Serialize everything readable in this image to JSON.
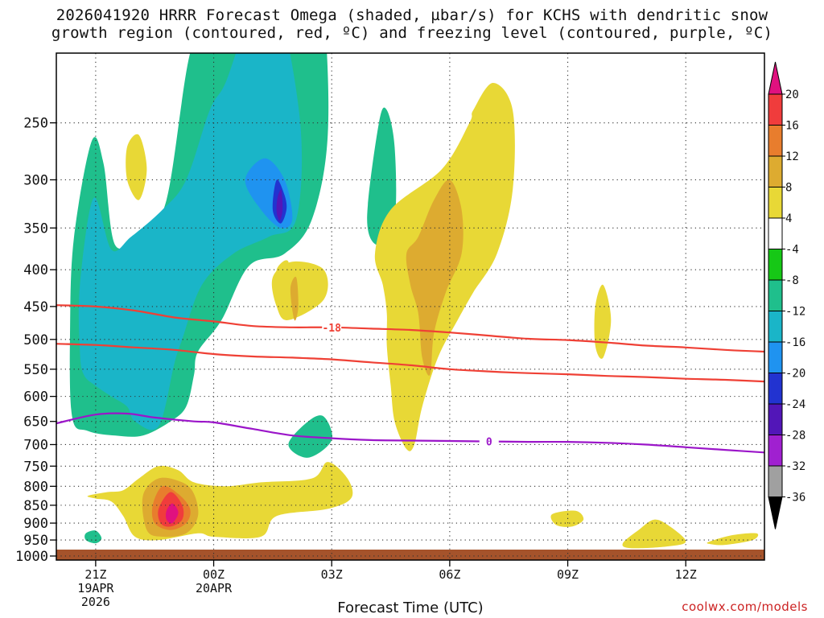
{
  "chart_data": {
    "type": "time-height cross section (filled contour)",
    "title_line1": "2026041920 HRRR Forecast Omega (shaded, µbar/s) for KCHS with dendritic snow",
    "title_line2": "growth region (contoured, red, ºC) and freezing level (contoured, purple, ºC)",
    "xlabel": "Forecast Time (UTC)",
    "credit": "coolwx.com/models",
    "y_axis": {
      "units": "hPa",
      "range": [
        1013,
        200
      ],
      "ticks": [
        250,
        300,
        350,
        400,
        450,
        500,
        550,
        600,
        650,
        700,
        750,
        800,
        850,
        900,
        950,
        1000
      ],
      "tick_labels": [
        "250",
        "300",
        "350",
        "400",
        "450",
        "500",
        "550",
        "600",
        "650",
        "700",
        "750",
        "800",
        "850",
        "900",
        "950",
        "1000"
      ],
      "grid": true
    },
    "x_axis": {
      "range_hours": [
        -1,
        17
      ],
      "ticks": [
        {
          "hour": 0,
          "lines": [
            "21Z",
            "19APR",
            "2026"
          ]
        },
        {
          "hour": 3,
          "lines": [
            "00Z",
            "20APR"
          ]
        },
        {
          "hour": 6,
          "lines": [
            "03Z"
          ]
        },
        {
          "hour": 9,
          "lines": [
            "06Z"
          ]
        },
        {
          "hour": 12,
          "lines": [
            "09Z"
          ]
        },
        {
          "hour": 15,
          "lines": [
            "12Z"
          ]
        }
      ]
    },
    "colorbar": {
      "levels": [
        "20",
        "16",
        "12",
        "8",
        "4",
        "-4",
        "-8",
        "-12",
        "-16",
        "-20",
        "-24",
        "-28",
        "-32",
        "-36"
      ],
      "colors": [
        "#e0117f",
        "#f03c3c",
        "#e87d2d",
        "#ddab30",
        "#e8d836",
        "#ffffff",
        "#16c816",
        "#1fbf8c",
        "#1ab5c8",
        "#1f93f0",
        "#2233d0",
        "#5216b8",
        "#a020d0",
        "#a0a0a0",
        "#000000"
      ]
    },
    "contours": [
      {
        "name": "dgz-top",
        "label": "-18",
        "color": "#ef4035",
        "points": [
          [
            -1,
            448
          ],
          [
            0,
            450
          ],
          [
            1,
            456
          ],
          [
            2,
            466
          ],
          [
            3,
            472
          ],
          [
            4,
            479
          ],
          [
            5,
            481
          ],
          [
            6,
            481
          ],
          [
            7,
            483
          ],
          [
            8,
            485
          ],
          [
            9,
            489
          ],
          [
            10,
            494
          ],
          [
            11,
            499
          ],
          [
            12,
            501
          ],
          [
            13,
            505
          ],
          [
            14,
            510
          ],
          [
            15,
            513
          ],
          [
            16,
            517
          ],
          [
            17,
            520
          ]
        ]
      },
      {
        "name": "dgz-bottom",
        "label": "",
        "color": "#ef4035",
        "points": [
          [
            -1,
            507
          ],
          [
            0,
            509
          ],
          [
            1,
            513
          ],
          [
            2,
            517
          ],
          [
            3,
            524
          ],
          [
            4,
            528
          ],
          [
            5,
            530
          ],
          [
            6,
            533
          ],
          [
            7,
            538
          ],
          [
            8,
            543
          ],
          [
            9,
            550
          ],
          [
            10,
            554
          ],
          [
            11,
            557
          ],
          [
            12,
            559
          ],
          [
            13,
            562
          ],
          [
            14,
            564
          ],
          [
            15,
            567
          ],
          [
            16,
            569
          ],
          [
            17,
            572
          ]
        ]
      },
      {
        "name": "freezing-level",
        "label": "0",
        "color": "#9b16c9",
        "points": [
          [
            -1,
            654
          ],
          [
            0,
            636
          ],
          [
            0.8,
            634
          ],
          [
            1.5,
            642
          ],
          [
            2.5,
            650
          ],
          [
            3,
            652
          ],
          [
            4,
            666
          ],
          [
            5,
            680
          ],
          [
            6,
            686
          ],
          [
            7,
            690
          ],
          [
            8,
            691
          ],
          [
            9,
            692
          ],
          [
            10,
            693
          ],
          [
            11,
            694
          ],
          [
            12,
            694
          ],
          [
            13,
            696
          ],
          [
            14,
            700
          ],
          [
            15,
            706
          ],
          [
            16,
            712
          ],
          [
            17,
            718
          ]
        ]
      }
    ],
    "shaded_regions": [
      {
        "class": "-8",
        "pts": [
          [
            -0.65,
            480
          ],
          [
            -0.55,
            360
          ],
          [
            -0.1,
            265
          ],
          [
            0.2,
            285
          ],
          [
            0.5,
            370
          ],
          [
            1.2,
            352
          ],
          [
            1.8,
            320
          ],
          [
            2.4,
            200
          ],
          [
            3,
            175
          ],
          [
            3.4,
            135
          ],
          [
            4.4,
            90
          ],
          [
            5.4,
            105
          ],
          [
            5.8,
            170
          ],
          [
            5.9,
            260
          ],
          [
            5.5,
            340
          ],
          [
            4.8,
            380
          ],
          [
            3.9,
            395
          ],
          [
            3.2,
            470
          ],
          [
            2.6,
            520
          ],
          [
            2.5,
            560
          ],
          [
            2.3,
            620
          ],
          [
            1.9,
            650
          ],
          [
            1.2,
            680
          ],
          [
            0.5,
            680
          ],
          [
            -0.2,
            670
          ],
          [
            -0.6,
            640
          ]
        ]
      },
      {
        "class": "-12",
        "pts": [
          [
            -0.4,
            520
          ],
          [
            -0.4,
            420
          ],
          [
            -0.05,
            318
          ],
          [
            0.4,
            375
          ],
          [
            0.9,
            360
          ],
          [
            1.7,
            330
          ],
          [
            2.3,
            300
          ],
          [
            2.9,
            240
          ],
          [
            3.3,
            220
          ],
          [
            3.9,
            180
          ],
          [
            4.6,
            170
          ],
          [
            5.2,
            250
          ],
          [
            5.1,
            340
          ],
          [
            4.4,
            360
          ],
          [
            3.5,
            380
          ],
          [
            2.7,
            420
          ],
          [
            2.2,
            500
          ],
          [
            2.0,
            540
          ],
          [
            1.6,
            660
          ],
          [
            1.0,
            650
          ],
          [
            0.8,
            620
          ],
          [
            0.4,
            600
          ],
          [
            0,
            580
          ],
          [
            -0.3,
            560
          ]
        ]
      },
      {
        "class": "-16",
        "pts": [
          [
            3.8,
            300
          ],
          [
            4.3,
            280
          ],
          [
            4.8,
            300
          ],
          [
            5.0,
            340
          ],
          [
            4.7,
            350
          ],
          [
            4.2,
            330
          ]
        ]
      },
      {
        "class": "-20",
        "pts": [
          [
            4.6,
            300
          ],
          [
            4.8,
            315
          ],
          [
            4.85,
            330
          ],
          [
            4.7,
            345
          ],
          [
            4.5,
            330
          ]
        ]
      },
      {
        "class": "-24",
        "pts": [
          [
            4.62,
            318
          ],
          [
            4.72,
            310
          ],
          [
            4.75,
            330
          ],
          [
            4.68,
            342
          ],
          [
            4.6,
            333
          ]
        ]
      },
      {
        "class": "-8",
        "pts": [
          [
            5.4,
            650
          ],
          [
            5.8,
            640
          ],
          [
            6.0,
            690
          ],
          [
            5.4,
            730
          ],
          [
            4.9,
            700
          ]
        ]
      },
      {
        "class": "-8",
        "pts": [
          [
            6.9,
            340
          ],
          [
            7.2,
            250
          ],
          [
            7.4,
            240
          ],
          [
            7.6,
            270
          ],
          [
            7.6,
            340
          ],
          [
            7.2,
            370
          ]
        ]
      },
      {
        "class": "-8",
        "pts": [
          [
            -0.25,
            930
          ],
          [
            0,
            922
          ],
          [
            0.15,
            945
          ],
          [
            0,
            960
          ],
          [
            -0.25,
            950
          ]
        ]
      },
      {
        "class": "4",
        "pts": [
          [
            0.8,
            270
          ],
          [
            1.1,
            260
          ],
          [
            1.3,
            290
          ],
          [
            1.1,
            320
          ],
          [
            0.8,
            300
          ]
        ]
      },
      {
        "class": "4",
        "pts": [
          [
            4.5,
            410
          ],
          [
            5.0,
            390
          ],
          [
            5.8,
            400
          ],
          [
            5.8,
            440
          ],
          [
            4.9,
            470
          ],
          [
            4.6,
            450
          ]
        ]
      },
      {
        "class": "8",
        "pts": [
          [
            4.95,
            425
          ],
          [
            5.1,
            410
          ],
          [
            5.15,
            450
          ],
          [
            5.05,
            470
          ]
        ]
      },
      {
        "class": "4",
        "pts": [
          [
            8.8,
            290
          ],
          [
            9.5,
            250
          ],
          [
            9.6,
            240
          ],
          [
            10.1,
            220
          ],
          [
            10.6,
            240
          ],
          [
            10.6,
            310
          ],
          [
            10.2,
            380
          ],
          [
            9.6,
            430
          ],
          [
            9.2,
            470
          ],
          [
            8.7,
            530
          ],
          [
            8.3,
            620
          ],
          [
            8.1,
            700
          ],
          [
            7.9,
            710
          ],
          [
            7.6,
            650
          ],
          [
            7.5,
            580
          ],
          [
            7.4,
            510
          ],
          [
            7.4,
            460
          ],
          [
            7.3,
            420
          ],
          [
            7.1,
            380
          ],
          [
            7.5,
            330
          ]
        ]
      },
      {
        "class": "8",
        "pts": [
          [
            8.6,
            320
          ],
          [
            9.0,
            300
          ],
          [
            9.3,
            330
          ],
          [
            9.3,
            380
          ],
          [
            8.9,
            430
          ],
          [
            8.6,
            490
          ],
          [
            8.5,
            560
          ],
          [
            8.3,
            530
          ],
          [
            8.2,
            460
          ],
          [
            8.0,
            420
          ],
          [
            7.9,
            380
          ],
          [
            8.2,
            360
          ]
        ]
      },
      {
        "class": "4",
        "pts": [
          [
            -0.2,
            825
          ],
          [
            0.3,
            815
          ],
          [
            0.7,
            810
          ],
          [
            1.1,
            780
          ],
          [
            1.6,
            750
          ],
          [
            2.1,
            760
          ],
          [
            2.5,
            790
          ],
          [
            3.3,
            800
          ],
          [
            4.2,
            790
          ],
          [
            5.5,
            780
          ],
          [
            5.9,
            740
          ],
          [
            6.4,
            780
          ],
          [
            6.5,
            830
          ],
          [
            5.9,
            860
          ],
          [
            4.6,
            880
          ],
          [
            4.2,
            940
          ],
          [
            3.0,
            940
          ],
          [
            2.6,
            930
          ],
          [
            1.6,
            950
          ],
          [
            1.0,
            940
          ],
          [
            0.7,
            880
          ],
          [
            0.4,
            840
          ],
          [
            0,
            832
          ]
        ]
      },
      {
        "class": "8",
        "pts": [
          [
            1.2,
            825
          ],
          [
            1.6,
            780
          ],
          [
            2.2,
            790
          ],
          [
            2.5,
            820
          ],
          [
            2.6,
            880
          ],
          [
            2.3,
            930
          ],
          [
            1.7,
            940
          ],
          [
            1.3,
            920
          ]
        ]
      },
      {
        "class": "12",
        "pts": [
          [
            1.45,
            850
          ],
          [
            1.7,
            800
          ],
          [
            2.1,
            820
          ],
          [
            2.4,
            860
          ],
          [
            2.3,
            900
          ],
          [
            1.9,
            920
          ],
          [
            1.5,
            900
          ]
        ]
      },
      {
        "class": "16",
        "pts": [
          [
            1.6,
            860
          ],
          [
            1.9,
            815
          ],
          [
            2.2,
            850
          ],
          [
            2.2,
            890
          ],
          [
            1.9,
            910
          ],
          [
            1.65,
            900
          ]
        ]
      },
      {
        "class": "20",
        "pts": [
          [
            1.8,
            865
          ],
          [
            1.95,
            845
          ],
          [
            2.1,
            870
          ],
          [
            1.95,
            900
          ],
          [
            1.8,
            890
          ]
        ]
      },
      {
        "class": "4",
        "pts": [
          [
            4.6,
            400
          ],
          [
            4.9,
            390
          ],
          [
            4.85,
            440
          ],
          [
            4.7,
            430
          ]
        ]
      },
      {
        "class": "4",
        "pts": [
          [
            12.7,
            450
          ],
          [
            12.9,
            420
          ],
          [
            13.1,
            470
          ],
          [
            12.9,
            530
          ],
          [
            12.7,
            510
          ]
        ]
      },
      {
        "class": "4",
        "pts": [
          [
            11.6,
            875
          ],
          [
            12.2,
            865
          ],
          [
            12.4,
            890
          ],
          [
            12.1,
            910
          ],
          [
            11.7,
            905
          ]
        ]
      },
      {
        "class": "4",
        "pts": [
          [
            13.4,
            960
          ],
          [
            13.8,
            920
          ],
          [
            14.2,
            890
          ],
          [
            14.6,
            910
          ],
          [
            15.0,
            955
          ],
          [
            14.5,
            970
          ],
          [
            13.6,
            975
          ]
        ]
      },
      {
        "class": "4",
        "pts": [
          [
            15.6,
            955
          ],
          [
            16.2,
            935
          ],
          [
            16.8,
            930
          ],
          [
            16.7,
            950
          ],
          [
            16.0,
            965
          ],
          [
            15.6,
            962
          ]
        ]
      }
    ]
  }
}
